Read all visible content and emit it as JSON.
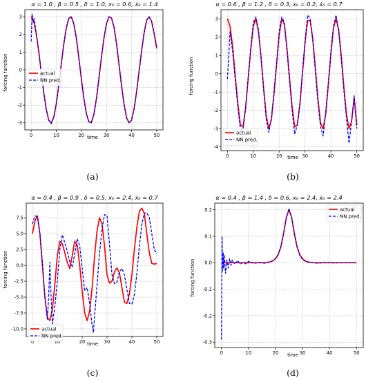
{
  "chart_data": [
    {
      "type": "line",
      "panel": "(a)",
      "title": "α = 1.0 , β = 0.5 , δ = 1.0, x₀ = 0.6, ẋ₀ = 1.4",
      "xlabel": "time",
      "ylabel": "forcing function",
      "xlim": [
        -2.5,
        52.5
      ],
      "ylim": [
        -3.4,
        3.4
      ],
      "xticks": [
        0,
        10,
        20,
        30,
        40,
        50
      ],
      "yticks": [
        -3,
        -2,
        -1,
        0,
        1,
        2,
        3
      ],
      "grid": true,
      "legend_position": "center-left",
      "series": [
        {
          "name": "actual",
          "color": "#ff0000",
          "style": "solid",
          "x": [
            0,
            1,
            2,
            3,
            4,
            5,
            6,
            7,
            8,
            9,
            10,
            11,
            12,
            13,
            14,
            15,
            16,
            17,
            18,
            19,
            20,
            21,
            22,
            23,
            24,
            25,
            26,
            27,
            28,
            29,
            30,
            31,
            32,
            33,
            34,
            35,
            36,
            37,
            38,
            39,
            40,
            41,
            42,
            43,
            44,
            45,
            46,
            47,
            48,
            49,
            50
          ],
          "y": [
            3.0,
            2.76,
            2.08,
            1.07,
            -0.1,
            -1.26,
            -2.22,
            -2.85,
            -3.0,
            -2.69,
            -1.94,
            -0.88,
            0.31,
            1.45,
            2.36,
            2.91,
            3.0,
            2.6,
            1.79,
            0.67,
            -0.51,
            -1.62,
            -2.48,
            -2.95,
            -2.97,
            -2.51,
            -1.63,
            -0.48,
            0.71,
            1.79,
            2.6,
            3.0,
            2.93,
            2.42,
            1.48,
            0.29,
            -0.9,
            -1.95,
            -2.71,
            -3.0,
            -2.84,
            -2.21,
            -1.24,
            -0.07,
            1.08,
            2.1,
            2.8,
            2.99,
            2.73,
            2.04,
            1.2
          ]
        },
        {
          "name": "NN pred.",
          "color": "#0000ff",
          "style": "dashed",
          "x": [
            0,
            0.4,
            0.8,
            1.2,
            1.6,
            2,
            3,
            4,
            5,
            6,
            7,
            8,
            9,
            10,
            11,
            12,
            13,
            14,
            15,
            16,
            17,
            18,
            19,
            20,
            21,
            22,
            23,
            24,
            25,
            26,
            27,
            28,
            29,
            30,
            31,
            32,
            33,
            34,
            35,
            36,
            37,
            38,
            39,
            40,
            41,
            42,
            43,
            44,
            45,
            46,
            47,
            48,
            49,
            50
          ],
          "y": [
            1.6,
            3.15,
            2.7,
            2.9,
            2.5,
            2.08,
            1.07,
            -0.1,
            -1.26,
            -2.22,
            -2.85,
            -3.05,
            -2.69,
            -1.94,
            -0.88,
            0.31,
            1.45,
            2.36,
            2.91,
            3.0,
            2.6,
            1.79,
            0.67,
            -0.51,
            -1.62,
            -2.48,
            -2.95,
            -3.0,
            -2.51,
            -1.63,
            -0.48,
            0.71,
            1.79,
            2.6,
            3.0,
            2.93,
            2.42,
            1.48,
            0.29,
            -0.9,
            -1.95,
            -2.71,
            -3.02,
            -2.84,
            -2.21,
            -1.24,
            -0.07,
            1.08,
            2.1,
            2.8,
            3.0,
            2.73,
            2.04,
            1.3
          ]
        }
      ]
    },
    {
      "type": "line",
      "panel": "(b)",
      "title": "α = 0.6 , β = 1.2 , δ = 0.3, x₀ = 0.2, ẋ₀ = 0.7",
      "xlabel": "time",
      "ylabel": "forcing function",
      "xlim": [
        -2.5,
        52.5
      ],
      "ylim": [
        -4.2,
        3.5
      ],
      "xticks": [
        0,
        10,
        20,
        30,
        40,
        50
      ],
      "yticks": [
        -4,
        -3,
        -2,
        -1,
        0,
        1,
        2,
        3
      ],
      "grid": true,
      "legend_position": "lower-left",
      "series": [
        {
          "name": "actual",
          "color": "#ff0000",
          "style": "solid",
          "x": [
            0,
            1,
            2,
            3,
            4,
            5,
            6,
            7,
            8,
            9,
            10,
            11,
            12,
            13,
            14,
            15,
            16,
            17,
            18,
            19,
            20,
            21,
            22,
            23,
            24,
            25,
            26,
            27,
            28,
            29,
            30,
            31,
            32,
            33,
            34,
            35,
            36,
            37,
            38,
            39,
            40,
            41,
            42,
            43,
            44,
            45,
            46,
            47,
            48,
            49,
            50
          ],
          "y": [
            3.0,
            2.6,
            1.5,
            -0.1,
            -1.6,
            -2.8,
            -2.9,
            -1.9,
            -0.3,
            1.3,
            2.6,
            3.0,
            2.3,
            0.9,
            -0.8,
            -2.3,
            -3.0,
            -2.5,
            -1.1,
            0.5,
            2.1,
            3.0,
            2.7,
            1.4,
            -0.2,
            -1.8,
            -2.9,
            -2.8,
            -1.7,
            0.0,
            1.7,
            2.9,
            2.9,
            1.9,
            0.3,
            -1.4,
            -2.7,
            -3.0,
            -2.2,
            -0.6,
            1.1,
            2.5,
            3.0,
            2.4,
            1.0,
            -0.7,
            -2.2,
            -3.0,
            -2.6,
            -1.3,
            -2.8
          ]
        },
        {
          "name": "NN pred.",
          "color": "#0000ff",
          "style": "dashed",
          "x": [
            0,
            0.5,
            1,
            2,
            3,
            4,
            5,
            6,
            7,
            8,
            9,
            10,
            11,
            12,
            13,
            14,
            15,
            16,
            17,
            18,
            19,
            20,
            21,
            22,
            23,
            24,
            25,
            26,
            27,
            28,
            29,
            30,
            31,
            32,
            33,
            34,
            35,
            36,
            37,
            38,
            39,
            40,
            41,
            42,
            43,
            44,
            45,
            46,
            47,
            48,
            49,
            50
          ],
          "y": [
            -0.3,
            0.9,
            2.3,
            1.2,
            -0.3,
            -1.8,
            -3.0,
            -3.1,
            -1.9,
            -0.2,
            1.4,
            2.8,
            3.1,
            2.4,
            0.9,
            -0.9,
            -2.5,
            -3.2,
            -2.4,
            -1.0,
            0.6,
            2.3,
            3.1,
            2.8,
            1.3,
            -0.4,
            -2.0,
            -3.3,
            -2.8,
            -1.6,
            0.1,
            1.8,
            3.2,
            3.0,
            1.8,
            0.1,
            -1.6,
            -2.9,
            -3.4,
            -2.1,
            -0.5,
            1.2,
            2.6,
            3.2,
            2.3,
            0.8,
            -0.9,
            -2.4,
            -3.8,
            -2.6,
            -1.2,
            -3.0
          ]
        }
      ]
    },
    {
      "type": "line",
      "panel": "(c)",
      "title": "α = 0.4 , β = 0.9 , δ = 0.5, x₀ = 2.4, ẋ₀ = 0.7",
      "xlabel": "time",
      "ylabel": "forcing function",
      "xlim": [
        -2.5,
        52.5
      ],
      "ylim": [
        -11.2,
        9.8
      ],
      "xticks": [
        0,
        10,
        20,
        30,
        40,
        50
      ],
      "yticks": [
        -10.0,
        -7.5,
        -5.0,
        -2.5,
        0.0,
        2.5,
        5.0,
        7.5
      ],
      "grid": true,
      "legend_position": "lower-left",
      "series": [
        {
          "name": "actual",
          "color": "#ff0000",
          "style": "solid",
          "x": [
            0,
            1,
            2,
            3,
            4,
            5,
            6,
            7,
            8,
            9,
            10,
            11,
            12,
            13,
            14,
            15,
            16,
            17,
            18,
            19,
            20,
            21,
            22,
            23,
            24,
            25,
            26,
            27,
            28,
            29,
            30,
            31,
            32,
            33,
            34,
            35,
            36,
            37,
            38,
            39,
            40,
            41,
            42,
            43,
            44,
            45,
            46,
            47,
            48,
            49,
            50
          ],
          "y": [
            5.0,
            7.0,
            7.8,
            5.0,
            0.0,
            -5.0,
            -8.2,
            -8.7,
            -7.0,
            -3.0,
            1.5,
            3.8,
            3.4,
            2.0,
            0.5,
            -0.5,
            1.5,
            3.8,
            3.2,
            0.0,
            -4.0,
            -7.5,
            -8.7,
            -7.2,
            -3.5,
            1.5,
            5.5,
            7.5,
            6.5,
            3.0,
            -1.5,
            -2.8,
            -2.5,
            -1.0,
            -0.4,
            -1.2,
            -3.5,
            -5.8,
            -6.0,
            -4.5,
            -1.5,
            2.5,
            6.0,
            8.5,
            9.0,
            8.2,
            5.0,
            2.0,
            0.3,
            0.2,
            0.3
          ]
        },
        {
          "name": "NN pred.",
          "color": "#0000ff",
          "style": "dashed",
          "x": [
            0,
            0.5,
            1,
            2,
            3,
            4,
            5,
            6,
            6.5,
            7,
            7.5,
            8,
            9,
            10,
            11,
            12,
            13,
            14,
            15,
            16,
            17,
            18,
            19,
            20,
            21,
            22,
            23,
            24,
            24.5,
            25,
            26,
            27,
            28,
            29,
            30,
            31,
            32,
            33,
            34,
            35,
            36,
            37,
            38,
            39,
            40,
            41,
            42,
            43,
            44,
            45,
            46,
            47,
            48,
            49,
            50
          ],
          "y": [
            6.5,
            7.2,
            7.8,
            7.6,
            5.0,
            0.5,
            -5.0,
            -8.5,
            -5.0,
            0.5,
            -5.0,
            -9.2,
            -6.5,
            -2.5,
            2.5,
            4.8,
            3.6,
            2.2,
            0.6,
            -0.3,
            1.8,
            4.2,
            3.1,
            -0.5,
            -4.0,
            -3.5,
            -6.0,
            -9.5,
            -10.6,
            -8.0,
            -3.0,
            2.0,
            5.8,
            8.0,
            7.8,
            3.2,
            -1.5,
            -2.9,
            -2.6,
            -1.0,
            -0.5,
            -1.5,
            -3.8,
            -6.0,
            -6.1,
            -4.6,
            -1.3,
            3.0,
            6.5,
            8.2,
            8.3,
            7.5,
            5.0,
            2.5,
            1.8
          ]
        }
      ]
    },
    {
      "type": "line",
      "panel": "(d)",
      "title": "α = 0.4 , β = 1.4 , δ = 0.6, x₀ = 2.4, ẋ₀ = 2.4",
      "xlabel": "time",
      "ylabel": "forcing function",
      "xlim": [
        -2.5,
        52.5
      ],
      "ylim": [
        -0.32,
        0.225
      ],
      "xticks": [
        0,
        10,
        20,
        30,
        40,
        50
      ],
      "yticks": [
        -0.3,
        -0.2,
        -0.1,
        0.0,
        0.1,
        0.2
      ],
      "grid": true,
      "legend_position": "top-right",
      "series": [
        {
          "name": "actual",
          "color": "#ff0000",
          "style": "solid",
          "x": [
            0,
            2,
            4,
            6,
            8,
            10,
            12,
            14,
            16,
            18,
            19,
            20,
            21,
            22,
            23,
            24,
            25,
            26,
            27,
            28,
            29,
            30,
            31,
            32,
            34,
            36,
            38,
            40,
            42,
            44,
            46,
            48,
            50
          ],
          "y": [
            0.0,
            0.0,
            0.0,
            0.0,
            0.0,
            0.0,
            0.0,
            0.0,
            0.0,
            0.003,
            0.007,
            0.015,
            0.03,
            0.06,
            0.11,
            0.17,
            0.2,
            0.17,
            0.11,
            0.06,
            0.03,
            0.015,
            0.007,
            0.003,
            0.0,
            0.0,
            0.0,
            0.0,
            0.0,
            0.0,
            0.0,
            0.0,
            0.0
          ]
        },
        {
          "name": "NN pred.",
          "color": "#0000ff",
          "style": "dashed",
          "x": [
            0,
            0.2,
            0.4,
            0.6,
            0.8,
            1.0,
            1.5,
            2,
            2.5,
            3,
            3.5,
            4,
            5,
            6,
            7,
            8,
            9,
            10,
            11,
            12,
            14,
            16,
            18,
            19,
            20,
            21,
            22,
            23,
            24,
            25,
            26,
            27,
            28,
            29,
            30,
            31,
            32,
            34,
            36,
            38,
            40,
            42,
            44,
            46,
            48,
            50
          ],
          "y": [
            -0.29,
            0.1,
            -0.03,
            0.04,
            -0.02,
            0.03,
            -0.04,
            0.01,
            -0.02,
            0.015,
            -0.01,
            0.01,
            -0.005,
            0.008,
            -0.006,
            0.002,
            -0.004,
            0.005,
            0.002,
            -0.003,
            0.002,
            -0.002,
            0.004,
            0.008,
            0.016,
            0.032,
            0.062,
            0.11,
            0.17,
            0.205,
            0.17,
            0.105,
            0.058,
            0.028,
            0.012,
            0.006,
            0.002,
            0.0,
            -0.002,
            0.001,
            0.0,
            -0.001,
            0.0,
            0.0,
            0.0,
            0.0
          ]
        }
      ]
    }
  ]
}
